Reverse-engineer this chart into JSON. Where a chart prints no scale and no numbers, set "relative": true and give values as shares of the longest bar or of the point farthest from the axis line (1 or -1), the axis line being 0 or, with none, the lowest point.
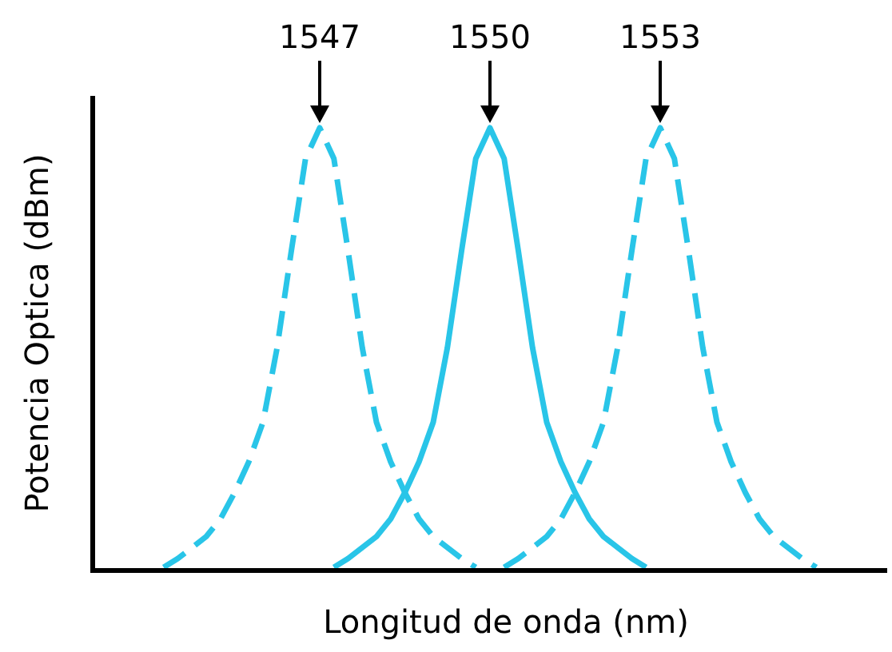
{
  "chart_data": {
    "type": "line",
    "relative": true,
    "xlabel": "Longitud de onda (nm)",
    "ylabel": "Potencia Optica (dBm)",
    "categories": [
      null,
      null,
      null,
      null,
      null,
      null,
      null,
      null,
      null,
      null,
      null,
      null,
      null,
      null,
      null,
      null,
      null,
      null,
      null,
      null,
      null,
      null,
      null,
      null,
      null,
      null,
      null,
      null,
      null,
      null,
      null,
      null,
      null,
      null,
      null,
      null,
      null,
      null,
      null,
      null,
      null,
      null,
      null,
      null,
      null,
      null,
      null,
      null,
      null,
      null,
      null,
      null,
      null,
      null,
      null,
      null,
      null
    ],
    "series": [
      {
        "color": "#29c5e8",
        "line_style": "dashed",
        "values": [
          null,
          null,
          null,
          null,
          null,
          0,
          0.02,
          0.045,
          0.07,
          0.11,
          0.17,
          0.24,
          0.33,
          0.5,
          0.72,
          0.93,
          1,
          0.93,
          0.72,
          0.5,
          0.33,
          0.24,
          0.17,
          0.11,
          0.07,
          0.045,
          0.02,
          0,
          null,
          null,
          null,
          null,
          null,
          null,
          null,
          null,
          null,
          null,
          null,
          null,
          null,
          null,
          null,
          null,
          null,
          null,
          null,
          null,
          null,
          null,
          null,
          null,
          null,
          null,
          null,
          null,
          null
        ]
      },
      {
        "color": "#29c5e8",
        "line_style": "solid",
        "values": [
          null,
          null,
          null,
          null,
          null,
          null,
          null,
          null,
          null,
          null,
          null,
          null,
          null,
          null,
          null,
          null,
          null,
          0,
          0.02,
          0.045,
          0.07,
          0.11,
          0.17,
          0.24,
          0.33,
          0.5,
          0.72,
          0.93,
          1,
          0.93,
          0.72,
          0.5,
          0.33,
          0.24,
          0.17,
          0.11,
          0.07,
          0.045,
          0.02,
          0,
          null,
          null,
          null,
          null,
          null,
          null,
          null,
          null,
          null,
          null,
          null,
          null,
          null,
          null,
          null,
          null,
          null
        ]
      },
      {
        "color": "#29c5e8",
        "line_style": "dashed",
        "values": [
          null,
          null,
          null,
          null,
          null,
          null,
          null,
          null,
          null,
          null,
          null,
          null,
          null,
          null,
          null,
          null,
          null,
          null,
          null,
          null,
          null,
          null,
          null,
          null,
          null,
          null,
          null,
          null,
          null,
          0,
          0.02,
          0.045,
          0.07,
          0.11,
          0.17,
          0.24,
          0.33,
          0.5,
          0.72,
          0.93,
          1,
          0.93,
          0.72,
          0.5,
          0.33,
          0.24,
          0.17,
          0.11,
          0.07,
          0.045,
          0.02,
          0,
          null,
          null,
          null,
          null,
          null
        ]
      }
    ],
    "annotations": [
      "1547",
      "1550",
      "1553"
    ]
  }
}
